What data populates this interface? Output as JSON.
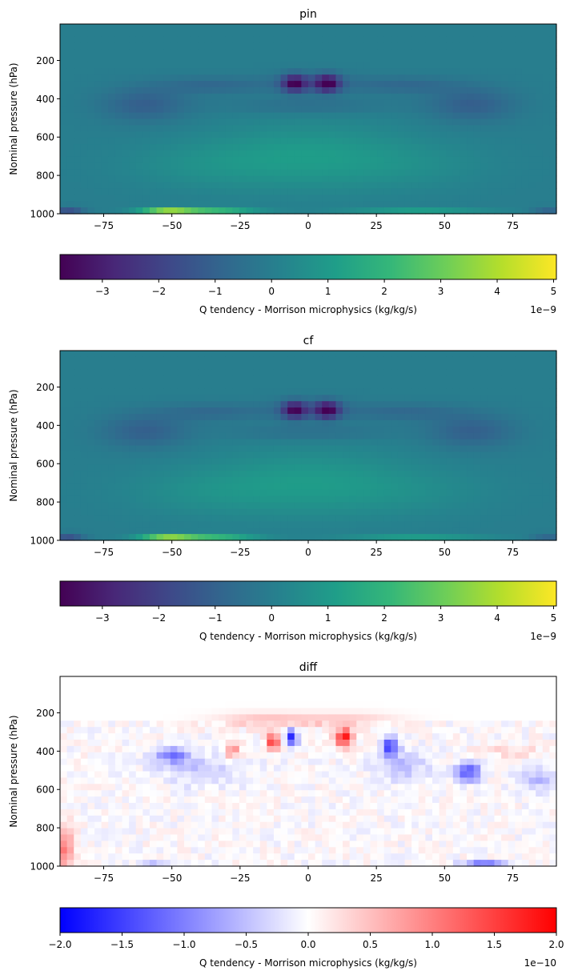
{
  "colors": {
    "viridis": [
      "#440154",
      "#482878",
      "#3e4989",
      "#31688e",
      "#26828e",
      "#1f9e89",
      "#35b779",
      "#6ece58",
      "#b5de2b",
      "#fde725"
    ],
    "bwr": [
      "#0000ff",
      "#ffffff",
      "#ff0000"
    ]
  },
  "chart_data": [
    {
      "type": "heatmap",
      "title": "pin",
      "ylabel": "Nominal pressure (hPa)",
      "xlabel": "",
      "x_ticks": [
        "−75",
        "−50",
        "−25",
        "0",
        "25",
        "50",
        "75"
      ],
      "y_ticks": [
        "200",
        "400",
        "600",
        "800",
        "1000"
      ],
      "xlim": [
        -91,
        91
      ],
      "ylim": [
        1000,
        10
      ],
      "x_tick_values": [
        -75,
        -50,
        -25,
        0,
        25,
        50,
        75
      ],
      "y_tick_values": [
        200,
        400,
        600,
        800,
        1000
      ],
      "grid": false,
      "colormap": "viridis",
      "colorbar": {
        "label": "Q tendency - Morrison microphysics (kg/kg/s)",
        "offset": "1e−9",
        "range": [
          -3.75,
          5.05
        ],
        "ticks": [
          "−3",
          "−2",
          "−1",
          "0",
          "1",
          "2",
          "3",
          "4",
          "5"
        ],
        "tick_values": [
          -3,
          -2,
          -1,
          0,
          1,
          2,
          3,
          4,
          5
        ]
      }
    },
    {
      "type": "heatmap",
      "title": "cf",
      "ylabel": "Nominal pressure (hPa)",
      "xlabel": "",
      "x_ticks": [
        "−75",
        "−50",
        "−25",
        "0",
        "25",
        "50",
        "75"
      ],
      "y_ticks": [
        "200",
        "400",
        "600",
        "800",
        "1000"
      ],
      "xlim": [
        -91,
        91
      ],
      "ylim": [
        1000,
        10
      ],
      "x_tick_values": [
        -75,
        -50,
        -25,
        0,
        25,
        50,
        75
      ],
      "y_tick_values": [
        200,
        400,
        600,
        800,
        1000
      ],
      "grid": false,
      "colormap": "viridis",
      "colorbar": {
        "label": "Q tendency - Morrison microphysics (kg/kg/s)",
        "offset": "1e−9",
        "range": [
          -3.75,
          5.05
        ],
        "ticks": [
          "−3",
          "−2",
          "−1",
          "0",
          "1",
          "2",
          "3",
          "4",
          "5"
        ],
        "tick_values": [
          -3,
          -2,
          -1,
          0,
          1,
          2,
          3,
          4,
          5
        ]
      }
    },
    {
      "type": "heatmap",
      "title": "diff",
      "ylabel": "Nominal pressure (hPa)",
      "xlabel": "",
      "x_ticks": [
        "−75",
        "−50",
        "−25",
        "0",
        "25",
        "50",
        "75"
      ],
      "y_ticks": [
        "200",
        "400",
        "600",
        "800",
        "1000"
      ],
      "xlim": [
        -91,
        91
      ],
      "ylim": [
        1000,
        10
      ],
      "x_tick_values": [
        -75,
        -50,
        -25,
        0,
        25,
        50,
        75
      ],
      "y_tick_values": [
        200,
        400,
        600,
        800,
        1000
      ],
      "grid": false,
      "colormap": "bwr",
      "colorbar": {
        "label": "Q tendency - Morrison microphysics (kg/kg/s)",
        "offset": "1e−10",
        "range": [
          -2.0,
          2.0
        ],
        "ticks": [
          "−2.0",
          "−1.5",
          "−1.0",
          "−0.5",
          "0.0",
          "0.5",
          "1.0",
          "1.5",
          "2.0"
        ],
        "tick_values": [
          -2.0,
          -1.5,
          -1.0,
          -0.5,
          0.0,
          0.5,
          1.0,
          1.5,
          2.0
        ]
      }
    }
  ]
}
